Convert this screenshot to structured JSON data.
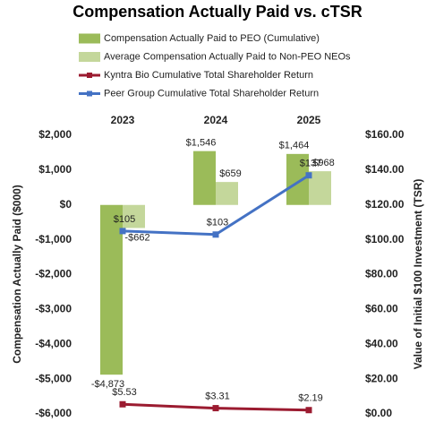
{
  "chart_data": {
    "type": "bar-line",
    "title": "Compensation Actually Paid vs. cTSR",
    "y_label": "Compensation Actually Paid ($000)",
    "y2_label": "Value of Initial $100 Investment (TSR)",
    "categories": [
      "2023",
      "2024",
      "2025"
    ],
    "series": [
      {
        "name": "Compensation Actually Paid to PEO (Cumulative)",
        "type": "bar",
        "color": "#9bbb59",
        "label_color": "#4f6228",
        "values": [
          -4873,
          1546,
          1464
        ],
        "value_labels": [
          "-$4,873",
          "$1,546",
          "$1,464"
        ]
      },
      {
        "name": "Average Compensation Actually Paid to Non-PEO NEOs",
        "type": "bar",
        "color": "#c4d79b",
        "label_color": "#4f6228",
        "values": [
          -662,
          659,
          968
        ],
        "value_labels": [
          "-$662",
          "$659",
          "$968"
        ]
      },
      {
        "name": "Kyntra Bio Cumulative Total Shareholder Return",
        "type": "line",
        "axis": "y2",
        "color": "#9b1b30",
        "label_color": "#9b1b30",
        "values": [
          5.53,
          3.31,
          2.19
        ],
        "value_labels": [
          "$5.53",
          "$3.31",
          "$2.19"
        ]
      },
      {
        "name": "Peer Group Cumulative Total Shareholder Return",
        "type": "line",
        "axis": "y2",
        "color": "#4472c4",
        "label_color": "#2f5597",
        "values": [
          105,
          103,
          137
        ],
        "value_labels": [
          "$105",
          "$103",
          "$137"
        ]
      }
    ],
    "ylim": [
      -6000,
      2000
    ],
    "yticks": [
      {
        "value": 2000,
        "label": "$2,000"
      },
      {
        "value": 1000,
        "label": "$1,000"
      },
      {
        "value": 0,
        "label": "$0"
      },
      {
        "value": -1000,
        "label": "-$1,000"
      },
      {
        "value": -2000,
        "label": "-$2,000"
      },
      {
        "value": -3000,
        "label": "-$3,000"
      },
      {
        "value": -4000,
        "label": "-$4,000"
      },
      {
        "value": -5000,
        "label": "-$5,000"
      },
      {
        "value": -6000,
        "label": "-$6,000"
      }
    ],
    "y2lim": [
      0,
      160
    ],
    "y2ticks": [
      {
        "value": 160,
        "label": "$160.00"
      },
      {
        "value": 140,
        "label": "$140.00"
      },
      {
        "value": 120,
        "label": "$120.00"
      },
      {
        "value": 100,
        "label": "$100.00"
      },
      {
        "value": 80,
        "label": "$80.00"
      },
      {
        "value": 60,
        "label": "$60.00"
      },
      {
        "value": 40,
        "label": "$40.00"
      },
      {
        "value": 20,
        "label": "$20.00"
      },
      {
        "value": 0,
        "label": "$0.00"
      }
    ]
  }
}
